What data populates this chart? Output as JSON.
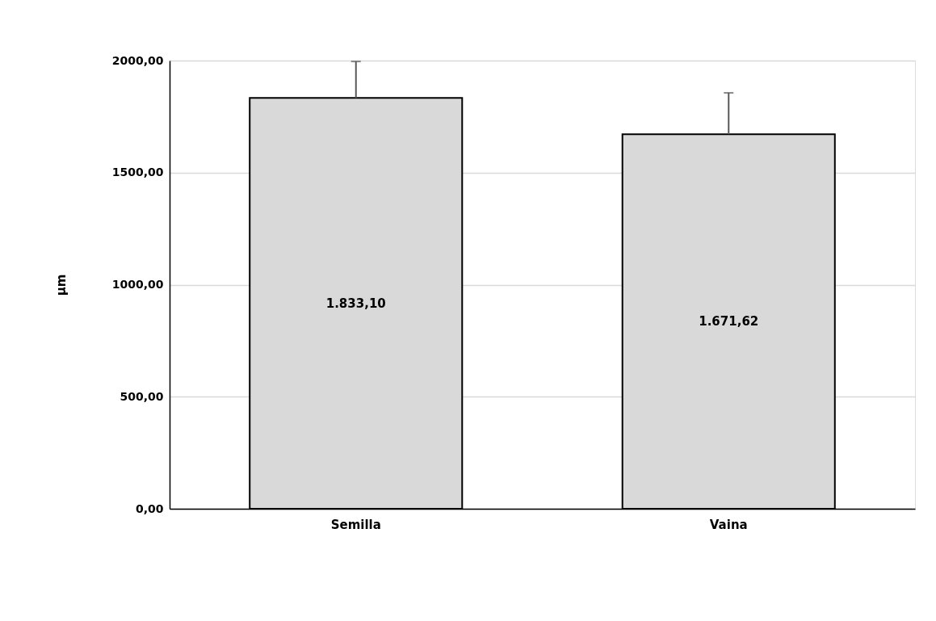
{
  "chart_data": {
    "type": "bar",
    "ylabel": "µm",
    "categories": [
      "Semilla",
      "Vaina"
    ],
    "values": [
      1833.1,
      1671.62
    ],
    "colors": [
      "#d9d9d9",
      "#d9d9d9"
    ],
    "value_labels": [
      "1.833,10",
      "1.671,62"
    ],
    "errors": [
      [
        1833.1,
        1996
      ],
      [
        1671.62,
        1856
      ]
    ],
    "ylim": [
      0,
      2000
    ],
    "yticks": [
      {
        "value": 0,
        "label": "0,00"
      },
      {
        "value": 500,
        "label": "500,00"
      },
      {
        "value": 1000,
        "label": "1000,00"
      },
      {
        "value": 1500,
        "label": "1500,00"
      },
      {
        "value": 2000,
        "label": "2000,00"
      }
    ],
    "grid": "y"
  }
}
